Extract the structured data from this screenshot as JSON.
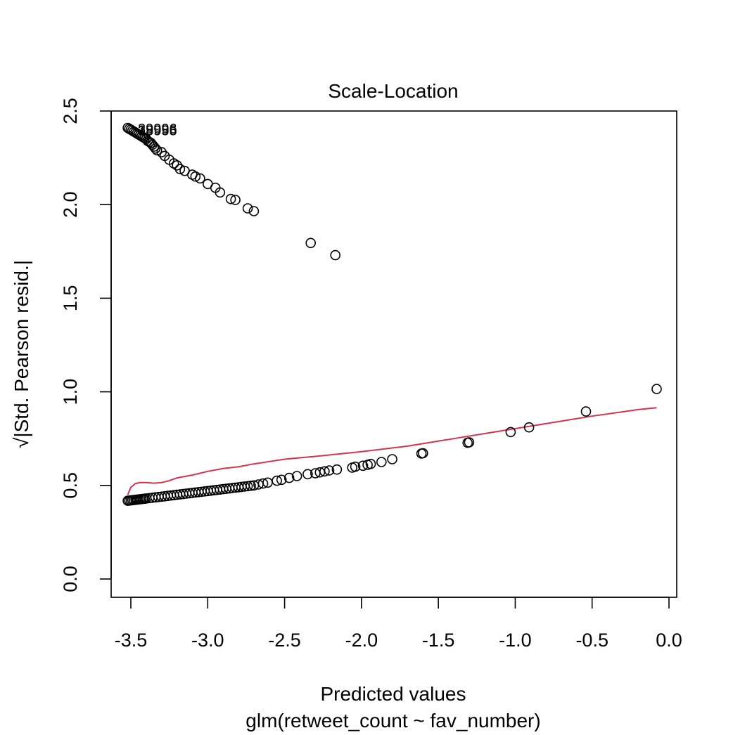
{
  "chart_data": {
    "type": "scatter",
    "title": "Scale-Location",
    "xlabel": "Predicted values",
    "xlabel2": "glm(retweet_count ~ fav_number)",
    "ylabel": "√|Std. Pearson resid.|",
    "xlim": [
      -3.6,
      0.05
    ],
    "ylim": [
      -0.1,
      2.5
    ],
    "xticks": [
      -3.5,
      -3.0,
      -2.5,
      -2.0,
      -1.5,
      -1.0,
      -0.5,
      0.0
    ],
    "xtick_labels": [
      "-3.5",
      "-3.0",
      "-2.5",
      "-2.0",
      "-1.5",
      "-1.0",
      "-0.5",
      "0.0"
    ],
    "yticks": [
      0.0,
      0.5,
      1.0,
      1.5,
      2.0,
      2.5
    ],
    "ytick_labels": [
      "0.0",
      "0.5",
      "1.0",
      "1.5",
      "2.0",
      "2.5"
    ],
    "grid": false,
    "point_labels": [
      {
        "text": "39996",
        "x": -3.5,
        "y": 2.41
      },
      {
        "text": "19995",
        "x": -3.5,
        "y": 2.4
      },
      {
        "text": "38956",
        "x": -3.5,
        "y": 2.4
      }
    ],
    "series": [
      {
        "marker": "open-circle",
        "color": "#000000",
        "x": [
          -3.52,
          -3.51,
          -3.5,
          -3.49,
          -3.48,
          -3.47,
          -3.46,
          -3.45,
          -3.44,
          -3.43,
          -3.42,
          -3.41,
          -3.4,
          -3.39,
          -3.38,
          -3.37,
          -3.36,
          -3.35,
          -3.34,
          -3.33,
          -3.3,
          -3.28,
          -3.25,
          -3.22,
          -3.2,
          -3.18,
          -3.15,
          -3.1,
          -3.08,
          -3.05,
          -3.0,
          -2.95,
          -2.92,
          -2.85,
          -2.82,
          -2.74,
          -2.7,
          -2.33,
          -2.17,
          -3.52,
          -3.51,
          -3.5,
          -3.49,
          -3.48,
          -3.47,
          -3.46,
          -3.45,
          -3.44,
          -3.43,
          -3.42,
          -3.41,
          -3.4,
          -3.38,
          -3.36,
          -3.34,
          -3.32,
          -3.3,
          -3.28,
          -3.26,
          -3.24,
          -3.22,
          -3.2,
          -3.18,
          -3.16,
          -3.14,
          -3.12,
          -3.1,
          -3.08,
          -3.06,
          -3.04,
          -3.02,
          -3.0,
          -2.98,
          -2.96,
          -2.94,
          -2.92,
          -2.9,
          -2.88,
          -2.86,
          -2.84,
          -2.82,
          -2.8,
          -2.78,
          -2.76,
          -2.74,
          -2.72,
          -2.7,
          -2.67,
          -2.64,
          -2.61,
          -2.55,
          -2.52,
          -2.47,
          -2.42,
          -2.35,
          -2.3,
          -2.27,
          -2.24,
          -2.21,
          -2.16,
          -2.06,
          -2.04,
          -1.99,
          -1.96,
          -1.94,
          -1.87,
          -1.8,
          -1.61,
          -1.6,
          -1.31,
          -1.3,
          -1.03,
          -0.91,
          -0.54,
          -0.08
        ],
        "y": [
          2.41,
          2.405,
          2.4,
          2.395,
          2.39,
          2.385,
          2.38,
          2.375,
          2.37,
          2.365,
          2.36,
          2.355,
          2.35,
          2.34,
          2.335,
          2.33,
          2.32,
          2.31,
          2.3,
          2.29,
          2.28,
          2.26,
          2.24,
          2.22,
          2.21,
          2.19,
          2.18,
          2.16,
          2.15,
          2.14,
          2.11,
          2.09,
          2.065,
          2.03,
          2.025,
          1.98,
          1.965,
          1.795,
          1.73,
          0.418,
          0.419,
          0.42,
          0.421,
          0.422,
          0.423,
          0.424,
          0.425,
          0.426,
          0.427,
          0.428,
          0.429,
          0.43,
          0.432,
          0.434,
          0.436,
          0.438,
          0.44,
          0.442,
          0.444,
          0.446,
          0.448,
          0.45,
          0.452,
          0.454,
          0.456,
          0.458,
          0.46,
          0.462,
          0.464,
          0.466,
          0.468,
          0.47,
          0.472,
          0.474,
          0.476,
          0.478,
          0.48,
          0.482,
          0.484,
          0.486,
          0.488,
          0.49,
          0.492,
          0.494,
          0.496,
          0.498,
          0.5,
          0.505,
          0.51,
          0.515,
          0.525,
          0.53,
          0.54,
          0.55,
          0.56,
          0.565,
          0.57,
          0.575,
          0.58,
          0.585,
          0.595,
          0.6,
          0.605,
          0.61,
          0.615,
          0.625,
          0.64,
          0.67,
          0.672,
          0.728,
          0.73,
          0.785,
          0.81,
          0.895,
          1.015
        ]
      }
    ],
    "smoother": {
      "color": "#D2344F",
      "x": [
        -3.52,
        -3.5,
        -3.47,
        -3.44,
        -3.4,
        -3.35,
        -3.3,
        -3.25,
        -3.2,
        -3.1,
        -3.0,
        -2.9,
        -2.8,
        -2.7,
        -2.5,
        -2.3,
        -2.0,
        -1.7,
        -1.4,
        -1.1,
        -0.8,
        -0.5,
        -0.2,
        -0.08
      ],
      "y": [
        0.45,
        0.49,
        0.51,
        0.515,
        0.515,
        0.512,
        0.515,
        0.525,
        0.54,
        0.555,
        0.575,
        0.59,
        0.6,
        0.615,
        0.64,
        0.655,
        0.68,
        0.71,
        0.75,
        0.79,
        0.83,
        0.87,
        0.905,
        0.915
      ]
    }
  }
}
